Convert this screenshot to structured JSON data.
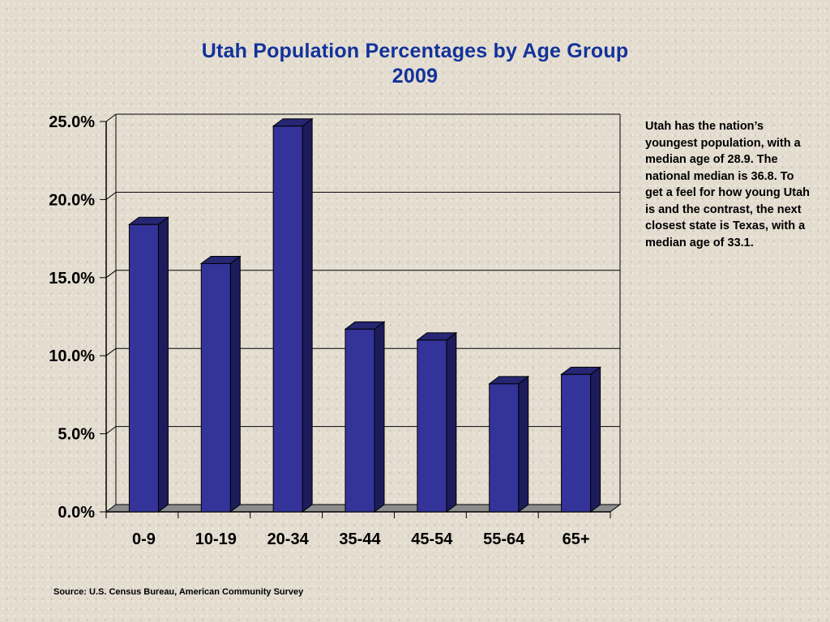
{
  "chart_data": {
    "type": "bar",
    "title": "Utah Population Percentages by Age Group",
    "subtitle": "2009",
    "categories": [
      "0-9",
      "10-19",
      "20-34",
      "35-44",
      "45-54",
      "55-64",
      "65+"
    ],
    "values": [
      18.4,
      15.9,
      24.7,
      11.7,
      11.0,
      8.2,
      8.8
    ],
    "yticks": [
      "0.0%",
      "5.0%",
      "10.0%",
      "15.0%",
      "20.0%",
      "25.0%"
    ],
    "ylim": [
      0,
      25
    ],
    "xlabel": "",
    "ylabel": "",
    "grid": true,
    "colors": {
      "bar_front": "#343399",
      "bar_side": "#1c1c5c",
      "bar_top": "#262673",
      "floor": "#8c8c8c"
    }
  },
  "annotation": "Utah has the nation’s youngest population, with a median age of 28.9. The national median is 36.8. To get a feel for how young Utah is and the contrast, the next closest state is Texas, with a median age of 33.1.",
  "source": "Source: U.S. Census Bureau, American Community Survey"
}
